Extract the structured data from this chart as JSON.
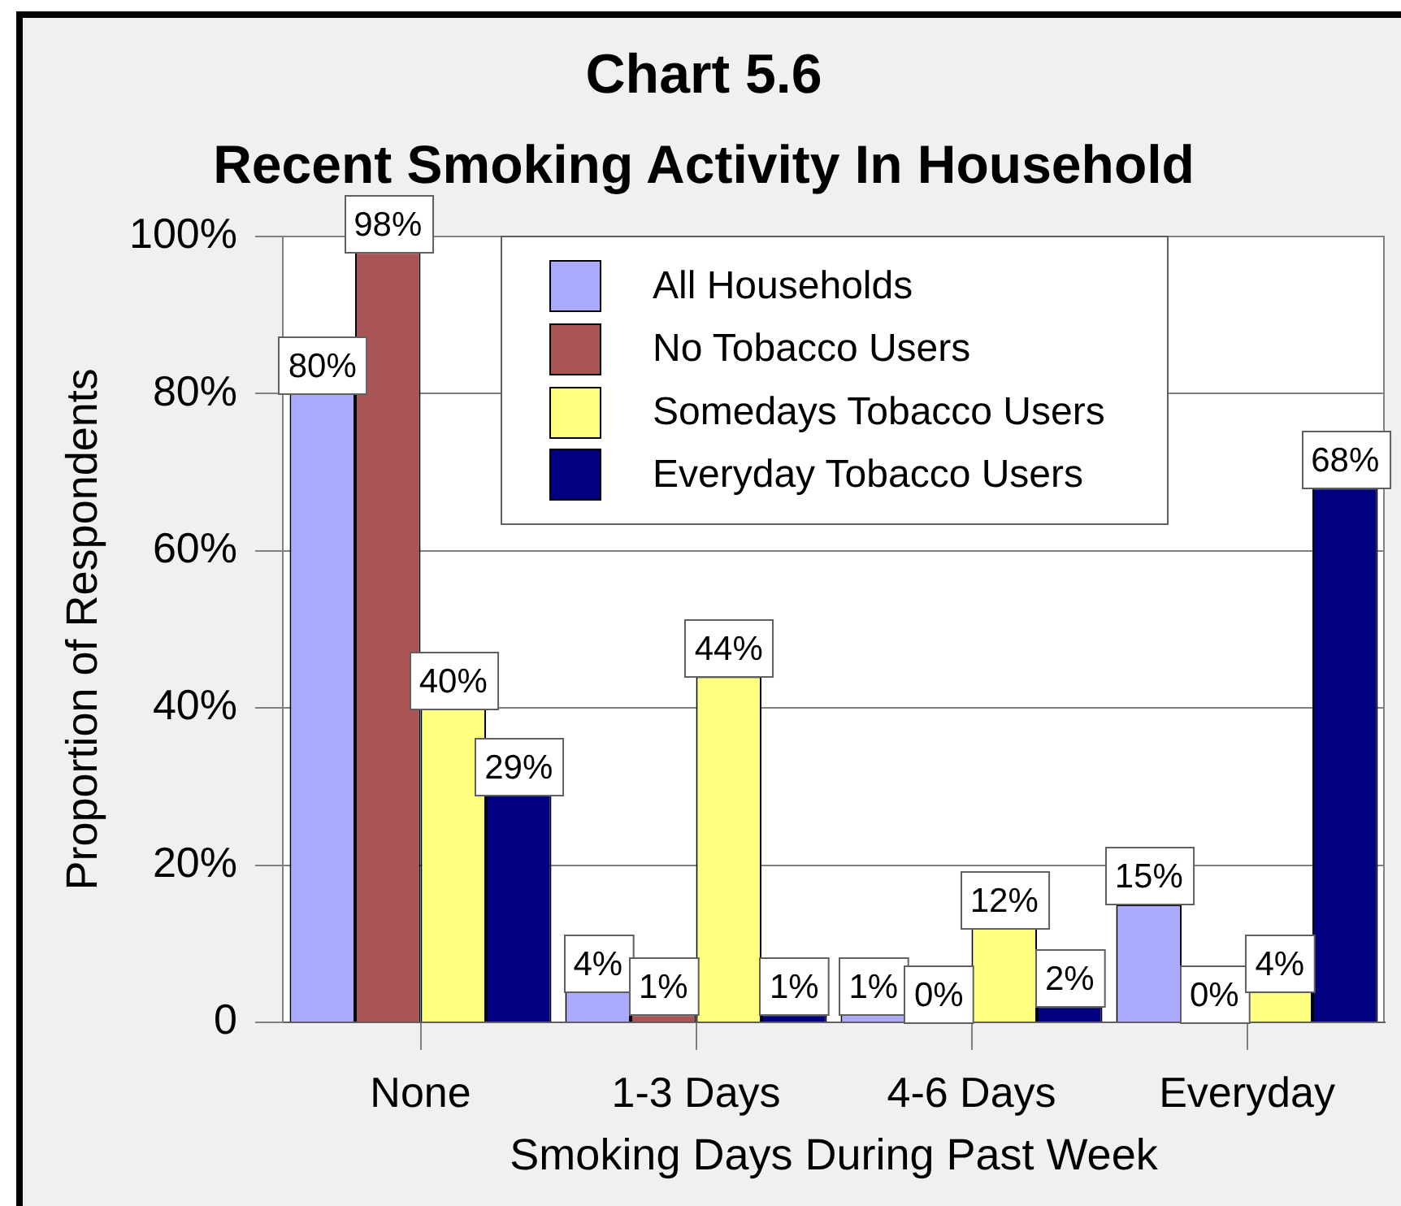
{
  "chart_data": {
    "type": "bar",
    "title": "Chart 5.6",
    "subtitle": "Recent Smoking Activity In Household",
    "xlabel": "Smoking Days During Past Week",
    "ylabel": "Proportion of Respondents",
    "categories": [
      "None",
      "1-3 Days",
      "4-6 Days",
      "Everyday"
    ],
    "series": [
      {
        "name": "All Households",
        "color": "#aaaaff",
        "values": [
          80,
          4,
          1,
          15
        ],
        "value_labels": [
          "80%",
          "4%",
          "1%",
          "15%"
        ]
      },
      {
        "name": "No Tobacco Users",
        "color": "#aa5555",
        "values": [
          98,
          1,
          0,
          0
        ],
        "value_labels": [
          "98%",
          "1%",
          "0%",
          "0%"
        ]
      },
      {
        "name": "Somedays Tobacco Users",
        "color": "#ffff80",
        "values": [
          40,
          44,
          12,
          4
        ],
        "value_labels": [
          "40%",
          "44%",
          "12%",
          "4%"
        ]
      },
      {
        "name": "Everyday Tobacco Users",
        "color": "#000080",
        "values": [
          29,
          1,
          2,
          68
        ],
        "value_labels": [
          "29%",
          "1%",
          "2%",
          "68%"
        ]
      }
    ],
    "ylim": [
      0,
      100
    ],
    "yticks": [
      0,
      {
        "value": 20,
        "label": "20%"
      },
      {
        "value": 40,
        "label": "40%"
      },
      {
        "value": 60,
        "label": "60%"
      },
      {
        "value": 80,
        "label": "80%"
      },
      {
        "value": 100,
        "label": "100%"
      }
    ],
    "grid": "y",
    "legend": "top"
  }
}
